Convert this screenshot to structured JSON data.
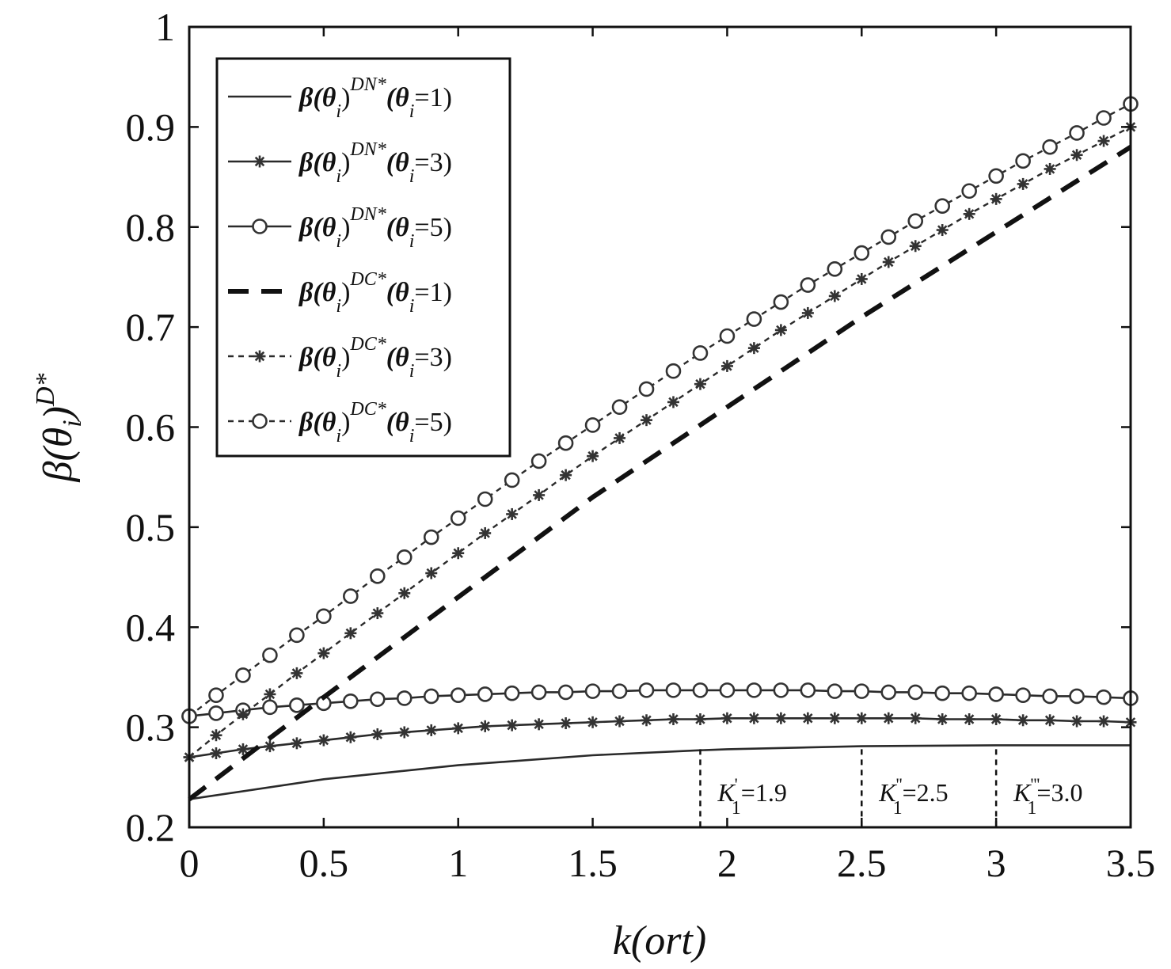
{
  "chart_data": {
    "type": "line",
    "title": "",
    "xlabel": "k(ort)",
    "ylabel": "β(θi)D*",
    "xlim": [
      0,
      3.5
    ],
    "ylim": [
      0.2,
      1
    ],
    "xticks": [
      "0",
      "0.5",
      "1",
      "1.5",
      "2",
      "2.5",
      "3",
      "3.5"
    ],
    "yticks": [
      "0.2",
      "0.3",
      "0.4",
      "0.5",
      "0.6",
      "0.7",
      "0.8",
      "0.9",
      "1"
    ],
    "grid": false,
    "legend_position": "top-left",
    "series": [
      {
        "name": "β(θi)DN*(θi=1)",
        "style": "solid",
        "marker": "none",
        "x": [
          0,
          0.5,
          1,
          1.5,
          1.9,
          2,
          2.5,
          3,
          3.5
        ],
        "y": [
          0.228,
          0.248,
          0.262,
          0.272,
          0.277,
          0.278,
          0.281,
          0.282,
          0.282
        ]
      },
      {
        "name": "β(θi)DN*(θi=3)",
        "style": "solid",
        "marker": "star",
        "x": [
          0,
          0.1,
          0.2,
          0.3,
          0.4,
          0.5,
          0.6,
          0.7,
          0.8,
          0.9,
          1.0,
          1.1,
          1.2,
          1.3,
          1.4,
          1.5,
          1.6,
          1.7,
          1.8,
          1.9,
          2.0,
          2.1,
          2.2,
          2.3,
          2.4,
          2.5,
          2.6,
          2.7,
          2.8,
          2.9,
          3.0,
          3.1,
          3.2,
          3.3,
          3.4,
          3.5
        ],
        "y": [
          0.27,
          0.274,
          0.278,
          0.281,
          0.284,
          0.287,
          0.29,
          0.293,
          0.295,
          0.297,
          0.299,
          0.301,
          0.302,
          0.303,
          0.304,
          0.305,
          0.306,
          0.307,
          0.308,
          0.308,
          0.309,
          0.309,
          0.309,
          0.309,
          0.309,
          0.309,
          0.309,
          0.309,
          0.308,
          0.308,
          0.308,
          0.307,
          0.307,
          0.306,
          0.306,
          0.305
        ]
      },
      {
        "name": "β(θi)DN*(θi=5)",
        "style": "solid",
        "marker": "circle",
        "x": [
          0,
          0.1,
          0.2,
          0.3,
          0.4,
          0.5,
          0.6,
          0.7,
          0.8,
          0.9,
          1.0,
          1.1,
          1.2,
          1.3,
          1.4,
          1.5,
          1.6,
          1.7,
          1.8,
          1.9,
          2.0,
          2.1,
          2.2,
          2.3,
          2.4,
          2.5,
          2.6,
          2.7,
          2.8,
          2.9,
          3.0,
          3.1,
          3.2,
          3.3,
          3.4,
          3.5
        ],
        "y": [
          0.311,
          0.314,
          0.317,
          0.32,
          0.322,
          0.324,
          0.326,
          0.328,
          0.329,
          0.331,
          0.332,
          0.333,
          0.334,
          0.335,
          0.335,
          0.336,
          0.336,
          0.337,
          0.337,
          0.337,
          0.337,
          0.337,
          0.337,
          0.337,
          0.336,
          0.336,
          0.335,
          0.335,
          0.334,
          0.334,
          0.333,
          0.332,
          0.331,
          0.331,
          0.33,
          0.329
        ]
      },
      {
        "name": "β(θi)DC*(θi=1)",
        "style": "dashed-bold",
        "marker": "none",
        "x": [
          0,
          0.5,
          1,
          1.5,
          2,
          2.5,
          3,
          3.5
        ],
        "y": [
          0.228,
          0.33,
          0.43,
          0.53,
          0.62,
          0.71,
          0.795,
          0.88
        ]
      },
      {
        "name": "β(θi)DC*(θi=3)",
        "style": "dotted",
        "marker": "star",
        "x": [
          0,
          0.1,
          0.2,
          0.3,
          0.4,
          0.5,
          0.6,
          0.7,
          0.8,
          0.9,
          1.0,
          1.1,
          1.2,
          1.3,
          1.4,
          1.5,
          1.6,
          1.7,
          1.8,
          1.9,
          2.0,
          2.1,
          2.2,
          2.3,
          2.4,
          2.5,
          2.6,
          2.7,
          2.8,
          2.9,
          3.0,
          3.1,
          3.2,
          3.3,
          3.4,
          3.5
        ],
        "y": [
          0.27,
          0.292,
          0.313,
          0.333,
          0.354,
          0.374,
          0.394,
          0.414,
          0.434,
          0.454,
          0.474,
          0.494,
          0.513,
          0.532,
          0.552,
          0.571,
          0.589,
          0.607,
          0.625,
          0.643,
          0.661,
          0.679,
          0.697,
          0.714,
          0.731,
          0.748,
          0.765,
          0.781,
          0.797,
          0.813,
          0.828,
          0.843,
          0.858,
          0.872,
          0.886,
          0.9
        ]
      },
      {
        "name": "β(θi)DC*(θi=5)",
        "style": "dotted",
        "marker": "circle",
        "x": [
          0,
          0.1,
          0.2,
          0.3,
          0.4,
          0.5,
          0.6,
          0.7,
          0.8,
          0.9,
          1.0,
          1.1,
          1.2,
          1.3,
          1.4,
          1.5,
          1.6,
          1.7,
          1.8,
          1.9,
          2.0,
          2.1,
          2.2,
          2.3,
          2.4,
          2.5,
          2.6,
          2.7,
          2.8,
          2.9,
          3.0,
          3.1,
          3.2,
          3.3,
          3.4,
          3.5
        ],
        "y": [
          0.311,
          0.332,
          0.352,
          0.372,
          0.392,
          0.411,
          0.431,
          0.451,
          0.47,
          0.49,
          0.509,
          0.528,
          0.547,
          0.566,
          0.584,
          0.602,
          0.62,
          0.638,
          0.656,
          0.674,
          0.691,
          0.708,
          0.725,
          0.742,
          0.758,
          0.774,
          0.79,
          0.806,
          0.821,
          0.836,
          0.851,
          0.866,
          0.88,
          0.894,
          0.909,
          0.923
        ]
      }
    ],
    "annotations": [
      {
        "x": 1.9,
        "label": "K'1=1.9",
        "pre": "K",
        "sup": "'",
        "sub": "1",
        "post": "=1.9"
      },
      {
        "x": 2.5,
        "label": "K''1=2.5",
        "pre": "K",
        "sup": "''",
        "sub": "1",
        "post": "=2.5"
      },
      {
        "x": 3.0,
        "label": "K'''1=3.0",
        "pre": "K",
        "sup": "'''",
        "sub": "1",
        "post": "=3.0"
      }
    ]
  },
  "legend": [
    {
      "base": "β(θ",
      "sub": "i",
      "close": ")",
      "sup": "DN*",
      "arg": "(θ",
      "argsub": "i",
      "val": "=1)"
    },
    {
      "base": "β(θ",
      "sub": "i",
      "close": ")",
      "sup": "DN*",
      "arg": "(θ",
      "argsub": "i",
      "val": "=3)"
    },
    {
      "base": "β(θ",
      "sub": "i",
      "close": ")",
      "sup": "DN*",
      "arg": "(θ",
      "argsub": "i",
      "val": "=5)"
    },
    {
      "base": "β(θ",
      "sub": "i",
      "close": ")",
      "sup": "DC*",
      "arg": "(θ",
      "argsub": "i",
      "val": "=1)"
    },
    {
      "base": "β(θ",
      "sub": "i",
      "close": ")",
      "sup": "DC*",
      "arg": "(θ",
      "argsub": "i",
      "val": "=3)"
    },
    {
      "base": "β(θ",
      "sub": "i",
      "close": ")",
      "sup": "DC*",
      "arg": "(θ",
      "argsub": "i",
      "val": "=5)"
    }
  ],
  "axis_labels": {
    "x_main": "k",
    "x_arg": "(ort)",
    "y_main": "β(θ",
    "y_sub": "i",
    "y_close": ")",
    "y_sup": "D*"
  }
}
